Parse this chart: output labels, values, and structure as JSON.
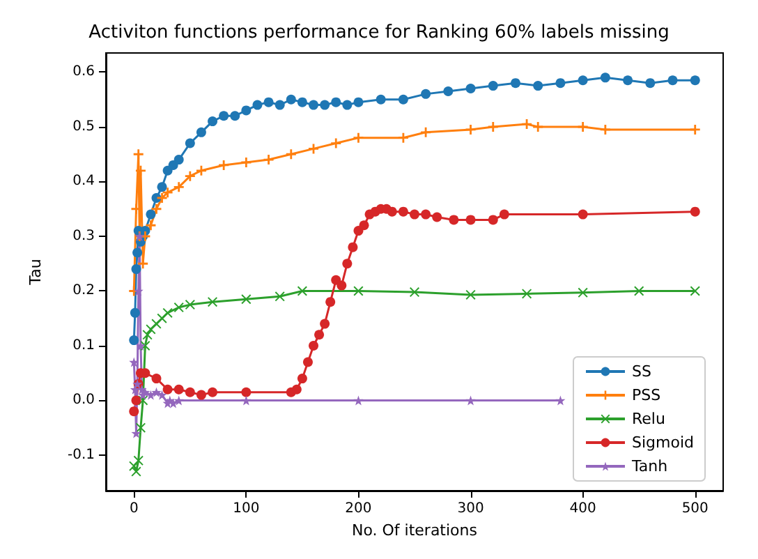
{
  "chart_data": {
    "type": "line",
    "title": "Activiton functions performance for Ranking 60% labels missing",
    "xlabel": "No. Of iterations",
    "ylabel": "Tau",
    "xlim": [
      -25,
      525
    ],
    "xticks": [
      0,
      100,
      200,
      300,
      400,
      500
    ],
    "ylim": [
      -0.165,
      0.635
    ],
    "yticks": [
      -0.1,
      {
        "value": 0,
        "label": "0.0"
      },
      0.1,
      0.2,
      0.3,
      0.4,
      0.5,
      0.6
    ],
    "grid": false,
    "legend": "bottom right",
    "series": [
      {
        "name": "SS",
        "color": "#1f77b4",
        "marker": "circle",
        "x": [
          0,
          1,
          2,
          3,
          4,
          6,
          8,
          10,
          15,
          20,
          25,
          30,
          35,
          40,
          50,
          60,
          70,
          80,
          90,
          100,
          110,
          120,
          130,
          140,
          150,
          160,
          170,
          180,
          190,
          200,
          220,
          240,
          260,
          280,
          300,
          320,
          340,
          360,
          380,
          400,
          420,
          440,
          460,
          480,
          500
        ],
        "values": [
          0.11,
          0.16,
          0.24,
          0.27,
          0.31,
          0.29,
          0.3,
          0.31,
          0.34,
          0.37,
          0.39,
          0.42,
          0.43,
          0.44,
          0.47,
          0.49,
          0.51,
          0.52,
          0.52,
          0.53,
          0.54,
          0.545,
          0.54,
          0.55,
          0.545,
          0.54,
          0.54,
          0.545,
          0.54,
          0.545,
          0.55,
          0.55,
          0.56,
          0.565,
          0.57,
          0.575,
          0.58,
          0.575,
          0.58,
          0.585,
          0.59,
          0.585,
          0.58,
          0.585,
          0.585
        ]
      },
      {
        "name": "PSS",
        "color": "#ff7f0e",
        "marker": "plus",
        "x": [
          0,
          2,
          4,
          5,
          6,
          8,
          10,
          15,
          20,
          25,
          30,
          40,
          50,
          60,
          80,
          100,
          120,
          140,
          160,
          180,
          200,
          240,
          260,
          300,
          320,
          350,
          360,
          400,
          420,
          500
        ],
        "values": [
          0.2,
          0.35,
          0.45,
          0.3,
          0.42,
          0.25,
          0.3,
          0.32,
          0.35,
          0.37,
          0.38,
          0.39,
          0.41,
          0.42,
          0.43,
          0.435,
          0.44,
          0.45,
          0.46,
          0.47,
          0.48,
          0.48,
          0.49,
          0.495,
          0.5,
          0.505,
          0.5,
          0.5,
          0.495,
          0.495
        ]
      },
      {
        "name": "Relu",
        "color": "#2ca02c",
        "marker": "cross",
        "x": [
          0,
          2,
          4,
          6,
          8,
          10,
          12,
          15,
          20,
          25,
          30,
          40,
          50,
          70,
          100,
          130,
          150,
          200,
          250,
          300,
          350,
          400,
          450,
          500
        ],
        "values": [
          -0.12,
          -0.13,
          -0.11,
          -0.05,
          0.0,
          0.1,
          0.12,
          0.13,
          0.14,
          0.15,
          0.16,
          0.17,
          0.175,
          0.18,
          0.185,
          0.19,
          0.2,
          0.2,
          0.198,
          0.193,
          0.195,
          0.197,
          0.2,
          0.2
        ]
      },
      {
        "name": "Sigmoid",
        "color": "#d62728",
        "marker": "circle",
        "x": [
          0,
          2,
          4,
          6,
          10,
          20,
          30,
          40,
          50,
          60,
          70,
          100,
          140,
          145,
          150,
          155,
          160,
          165,
          170,
          175,
          180,
          185,
          190,
          195,
          200,
          205,
          210,
          215,
          220,
          225,
          230,
          240,
          250,
          260,
          270,
          285,
          300,
          320,
          330,
          400,
          500
        ],
        "values": [
          -0.02,
          0.0,
          0.03,
          0.05,
          0.05,
          0.04,
          0.02,
          0.02,
          0.015,
          0.01,
          0.015,
          0.015,
          0.015,
          0.02,
          0.04,
          0.07,
          0.1,
          0.12,
          0.14,
          0.18,
          0.22,
          0.21,
          0.25,
          0.28,
          0.31,
          0.32,
          0.34,
          0.345,
          0.35,
          0.35,
          0.345,
          0.345,
          0.34,
          0.34,
          0.335,
          0.33,
          0.33,
          0.33,
          0.34,
          0.34,
          0.345
        ]
      },
      {
        "name": "Tanh",
        "color": "#9467bd",
        "marker": "star",
        "x": [
          0,
          1,
          2,
          3,
          4,
          5,
          6,
          7,
          8,
          10,
          15,
          20,
          25,
          30,
          32,
          35,
          40,
          100,
          200,
          300,
          380
        ],
        "values": [
          0.07,
          0.02,
          -0.06,
          0.03,
          0.2,
          0.3,
          0.1,
          0.02,
          0.01,
          0.015,
          0.01,
          0.015,
          0.01,
          -0.005,
          0.0,
          -0.005,
          0.0,
          0.0,
          0.0,
          0.0,
          0.0
        ]
      }
    ]
  }
}
